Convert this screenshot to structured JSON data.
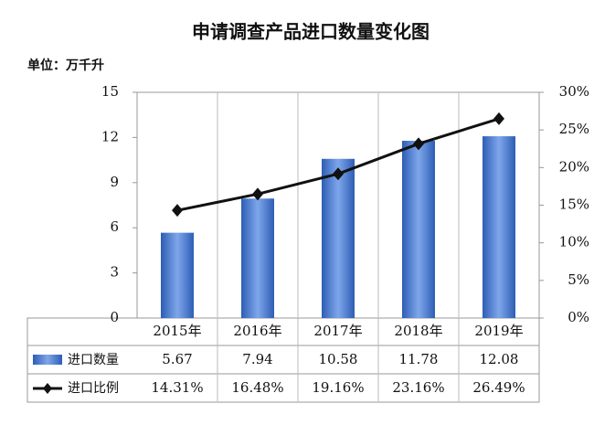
{
  "chart_data": {
    "type": "bar_line_table",
    "title": "申请调查产品进口数量变化图",
    "y_label": "单位：万千升",
    "categories": [
      "2015年",
      "2016年",
      "2017年",
      "2018年",
      "2019年"
    ],
    "series": [
      {
        "name": "进口数量",
        "color": "#2d5db5",
        "values": [
          5.67,
          7.94,
          10.58,
          11.78,
          12.08
        ]
      },
      {
        "name": "进口比例",
        "color": "#111111",
        "axis": "y2",
        "values": [
          14.31,
          16.48,
          19.16,
          23.16,
          26.49
        ],
        "value_labels": [
          "14.31%",
          "16.48%",
          "19.16%",
          "23.16%",
          "26.49%"
        ]
      }
    ],
    "ylim": [
      0,
      15
    ],
    "yticks": [
      0,
      3,
      6,
      9,
      12,
      15
    ],
    "y2lim": [
      0,
      30
    ],
    "y2ticks": [
      {
        "value": 0,
        "label": "0%"
      },
      {
        "value": 5,
        "label": "5%"
      },
      {
        "value": 10,
        "label": "10%"
      },
      {
        "value": 15,
        "label": "15%"
      },
      {
        "value": 20,
        "label": "20%"
      },
      {
        "value": 25,
        "label": "25%"
      },
      {
        "value": 30,
        "label": "30%"
      }
    ]
  }
}
